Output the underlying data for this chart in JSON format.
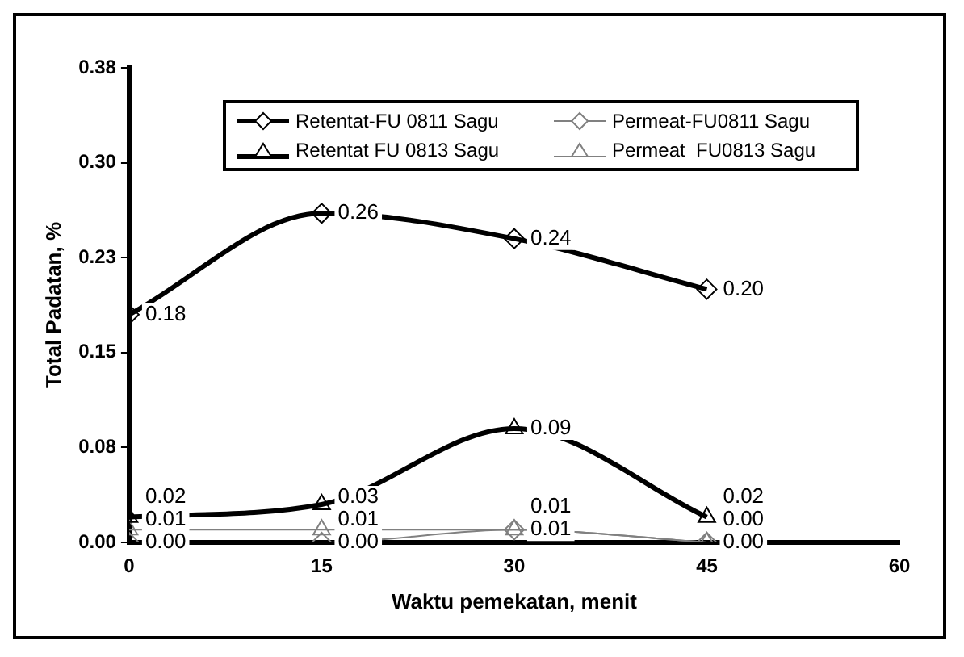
{
  "chart_data": {
    "type": "line",
    "xlabel": "Waktu pemekatan, menit",
    "ylabel": "Total Padatan, %",
    "x": [
      0,
      15,
      30,
      45
    ],
    "xlim": [
      0,
      60
    ],
    "xticks": [
      0,
      15,
      30,
      45,
      60
    ],
    "ylim": [
      0,
      0.375
    ],
    "yticks": [
      {
        "value": 0,
        "label": "0.00"
      },
      {
        "value": 0.075,
        "label": "0.08"
      },
      {
        "value": 0.15,
        "label": "0.15"
      },
      {
        "value": 0.225,
        "label": "0.23"
      },
      {
        "value": 0.3,
        "label": "0.30"
      },
      {
        "value": 0.375,
        "label": "0.38"
      }
    ],
    "grid": false,
    "legend": "top",
    "series": [
      {
        "name": "Retentat-FU 0811 Sagu",
        "color": "#000000",
        "marker": "diamond",
        "values": [
          0.18,
          0.26,
          0.24,
          0.2
        ],
        "value_labels": [
          "0.18",
          "0.26",
          "0.24",
          "0.20"
        ]
      },
      {
        "name": "Permeat-FU0811 Sagu",
        "color": "#808080",
        "marker": "diamond",
        "values": [
          0.0,
          0.0,
          0.01,
          0.0
        ],
        "value_labels": [
          "0.00",
          "0.00",
          "0.01",
          "0.00"
        ]
      },
      {
        "name": "Retentat FU 0813 Sagu",
        "color": "#000000",
        "marker": "triangle",
        "values": [
          0.02,
          0.03,
          0.09,
          0.02
        ],
        "value_labels": [
          "0.02",
          "0.03",
          "0.09",
          "0.02"
        ]
      },
      {
        "name": "Permeat  FU0813 Sagu",
        "color": "#808080",
        "marker": "triangle",
        "values": [
          0.01,
          0.01,
          0.01,
          0.0
        ],
        "value_labels": [
          "0.01",
          "0.01",
          "0.01",
          "0.00"
        ]
      }
    ]
  }
}
